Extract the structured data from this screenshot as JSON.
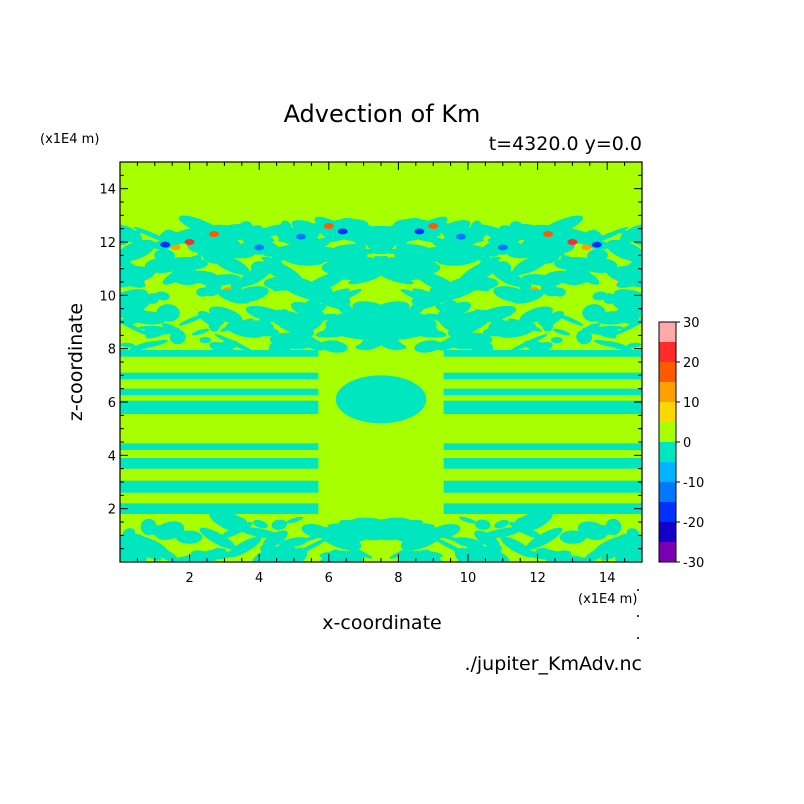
{
  "chart_data": {
    "type": "heatmap",
    "title": "Advection of Km",
    "subtitle": "t=4320.0 y=0.0",
    "xlabel": "x-coordinate",
    "ylabel": "z-coordinate",
    "x_unit": "(x1E4 m)",
    "y_unit": "(x1E4 m)",
    "xlim": [
      0,
      15
    ],
    "ylim": [
      0,
      15
    ],
    "xticks": [
      2,
      4,
      6,
      8,
      10,
      12,
      14
    ],
    "yticks": [
      2,
      4,
      6,
      8,
      10,
      12,
      14
    ],
    "xtick_labels": [
      "2",
      "4",
      "6",
      "8",
      "10",
      "12",
      "14"
    ],
    "ytick_labels": [
      "2",
      "4",
      "6",
      "8",
      "10",
      "12",
      "14"
    ],
    "colorbar": {
      "levels": [
        -30,
        -25,
        -20,
        -15,
        -10,
        -5,
        0,
        5,
        10,
        15,
        20,
        25,
        30
      ],
      "labels": [
        "30",
        "20",
        "10",
        "0",
        "-10",
        "-20",
        "-30"
      ],
      "colors": [
        "#7b00b4",
        "#1100c8",
        "#0032ff",
        "#0078ff",
        "#00b4ff",
        "#00e6bf",
        "#a8ff00",
        "#ffd700",
        "#ffa000",
        "#ff5a00",
        "#ff2a2a",
        "#ffaaaa"
      ],
      "background_color": "#a8ff00",
      "minor_color": "#00e6bf"
    },
    "bands": [
      {
        "z": [
          11.4,
          12.6
        ],
        "pattern": "turbulent-with-extremes"
      },
      {
        "z": [
          9.6,
          11.4
        ],
        "pattern": "wavy"
      },
      {
        "z": [
          8.0,
          9.6
        ],
        "pattern": "wavy"
      },
      {
        "z": [
          7.7,
          7.95
        ],
        "pattern": "stripe"
      },
      {
        "z": [
          6.85,
          7.1
        ],
        "pattern": "stripe"
      },
      {
        "z": [
          6.25,
          6.5
        ],
        "pattern": "stripe"
      },
      {
        "z": [
          5.55,
          6.05
        ],
        "pattern": "stripe"
      },
      {
        "z": [
          4.2,
          4.45
        ],
        "pattern": "stripe"
      },
      {
        "z": [
          3.5,
          3.9
        ],
        "pattern": "stripe"
      },
      {
        "z": [
          2.6,
          3.05
        ],
        "pattern": "stripe"
      },
      {
        "z": [
          1.8,
          2.2
        ],
        "pattern": "stripe"
      },
      {
        "z": [
          0.0,
          1.6
        ],
        "pattern": "wavy"
      }
    ]
  },
  "footer": {
    "filename": "./jupiter_KmAdv.nc"
  }
}
